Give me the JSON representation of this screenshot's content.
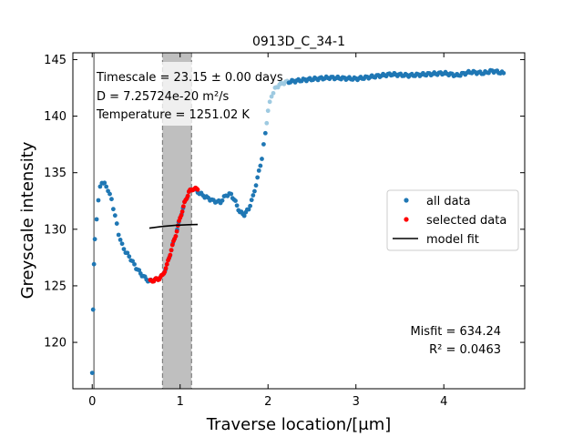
{
  "chart_data": {
    "type": "scatter",
    "title": "0913D_C_34-1",
    "xlabel": "Traverse location/[μm]",
    "ylabel": "Greyscale intensity",
    "xlim": [
      -0.22,
      4.92
    ],
    "ylim": [
      115.9,
      145.6
    ],
    "x_ticks": [
      0,
      1,
      2,
      3,
      4
    ],
    "y_ticks": [
      120,
      125,
      130,
      135,
      140,
      145
    ],
    "x_tick_labels": [
      "0",
      "1",
      "2",
      "3",
      "4"
    ],
    "y_tick_labels": [
      "120",
      "125",
      "130",
      "135",
      "140",
      "145"
    ],
    "grid": false,
    "legend": {
      "position": "center-right",
      "entries": [
        "all data",
        "selected data",
        "model fit"
      ]
    },
    "annotations": {
      "timescale": "Timescale = 23.15 ± 0.00 days",
      "diffusivity": "D = 7.25724e-20 m²/s",
      "temperature": "Temperature = 1251.02 K",
      "misfit": "Misfit = 634.24",
      "r2": "R² = 0.0463"
    },
    "interface_x": 0.02,
    "selected_region": [
      0.8,
      1.13
    ],
    "colors": {
      "all_data": "#1f77b4",
      "all_data_light": "#9ecae1",
      "selected_data": "#ff0000",
      "model_fit": "#000000",
      "region_fill": "#bfbfbf"
    },
    "series": [
      {
        "name": "all data",
        "anchors": [
          [
            0.0,
            117.3
          ],
          [
            0.01,
            122.8
          ],
          [
            0.02,
            126.8
          ],
          [
            0.03,
            129.1
          ],
          [
            0.05,
            131.0
          ],
          [
            0.07,
            132.5
          ],
          [
            0.09,
            133.7
          ],
          [
            0.11,
            134.2
          ],
          [
            0.14,
            134.0
          ],
          [
            0.18,
            133.5
          ],
          [
            0.22,
            132.6
          ],
          [
            0.26,
            131.2
          ],
          [
            0.3,
            129.6
          ],
          [
            0.34,
            128.6
          ],
          [
            0.38,
            128.0
          ],
          [
            0.42,
            127.6
          ],
          [
            0.46,
            127.1
          ],
          [
            0.5,
            126.6
          ],
          [
            0.55,
            126.1
          ],
          [
            0.6,
            125.7
          ],
          [
            0.65,
            125.4
          ],
          [
            0.7,
            125.5
          ],
          [
            0.75,
            125.6
          ],
          [
            0.8,
            125.9
          ],
          [
            0.85,
            126.8
          ],
          [
            0.9,
            128.2
          ],
          [
            0.95,
            129.5
          ],
          [
            1.0,
            131.0
          ],
          [
            1.05,
            132.3
          ],
          [
            1.1,
            133.3
          ],
          [
            1.15,
            133.6
          ],
          [
            1.2,
            133.3
          ],
          [
            1.28,
            132.9
          ],
          [
            1.38,
            132.5
          ],
          [
            1.46,
            132.4
          ],
          [
            1.52,
            133.0
          ],
          [
            1.58,
            133.1
          ],
          [
            1.63,
            132.4
          ],
          [
            1.68,
            131.5
          ],
          [
            1.73,
            131.3
          ],
          [
            1.78,
            131.8
          ],
          [
            1.83,
            132.9
          ],
          [
            1.88,
            134.5
          ],
          [
            1.93,
            136.3
          ],
          [
            1.97,
            138.5
          ],
          [
            2.0,
            140.5
          ],
          [
            2.04,
            141.8
          ],
          [
            2.08,
            142.4
          ],
          [
            2.13,
            142.8
          ],
          [
            2.2,
            143.0
          ],
          [
            2.4,
            143.2
          ],
          [
            2.7,
            143.4
          ],
          [
            3.0,
            143.3
          ],
          [
            3.2,
            143.5
          ],
          [
            3.4,
            143.7
          ],
          [
            3.6,
            143.6
          ],
          [
            3.8,
            143.7
          ],
          [
            4.0,
            143.8
          ],
          [
            4.15,
            143.6
          ],
          [
            4.3,
            143.9
          ],
          [
            4.45,
            143.8
          ],
          [
            4.55,
            144.0
          ],
          [
            4.68,
            143.8
          ]
        ]
      },
      {
        "name": "selected data",
        "anchors": [
          [
            0.66,
            125.4
          ],
          [
            0.7,
            125.5
          ],
          [
            0.75,
            125.6
          ],
          [
            0.8,
            125.9
          ],
          [
            0.85,
            126.8
          ],
          [
            0.9,
            128.2
          ],
          [
            0.95,
            129.5
          ],
          [
            1.0,
            131.0
          ],
          [
            1.05,
            132.3
          ],
          [
            1.1,
            133.3
          ],
          [
            1.15,
            133.6
          ],
          [
            1.2,
            133.5
          ]
        ]
      },
      {
        "name": "model fit",
        "x": [
          0.65,
          0.8,
          0.95,
          1.1,
          1.2
        ],
        "y": [
          130.1,
          130.25,
          130.35,
          130.4,
          130.42
        ]
      }
    ]
  }
}
